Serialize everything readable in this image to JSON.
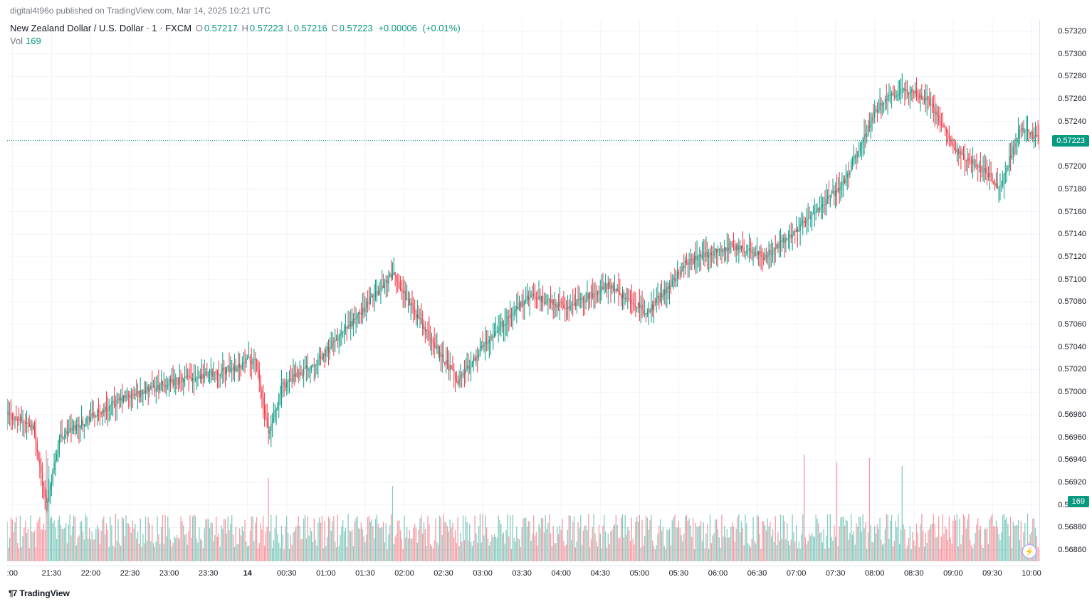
{
  "header": {
    "publisher": "digital4t96o",
    "text_mid": " published on ",
    "site": "TradingView.com",
    "text_sep": ", ",
    "timestamp": "Mar 14, 2025 10:21 UTC"
  },
  "legend": {
    "symbol": "New Zealand Dollar / U.S. Dollar",
    "interval": "1",
    "broker": "FXCM",
    "sep": " · ",
    "O_label": "O",
    "O": "0.57217",
    "H_label": "H",
    "H": "0.57223",
    "L_label": "L",
    "L": "0.57216",
    "C_label": "C",
    "C": "0.57223",
    "change_abs": "+0.00006",
    "change_pct": "(+0.01%)"
  },
  "volume_legend": {
    "label": "Vol",
    "value": "169"
  },
  "footer": {
    "brand": "TradingView"
  },
  "colors": {
    "up": "#089981",
    "down": "#f23645",
    "grid": "#f0f3fa",
    "axis": "#e0e3eb",
    "text": "#131722",
    "muted": "#787b86",
    "vol_up": "rgba(8,153,129,0.5)",
    "vol_down": "rgba(242,54,69,0.5)",
    "price_tag_bg": "#089981",
    "vol_tag_bg": "#089981"
  },
  "chart": {
    "type": "candlestick",
    "y_min": 0.5685,
    "y_max": 0.5733,
    "y_ticks": [
      "0.57320",
      "0.57300",
      "0.57280",
      "0.57260",
      "0.57240",
      "0.57220",
      "0.57200",
      "0.57180",
      "0.57160",
      "0.57140",
      "0.57120",
      "0.57100",
      "0.57080",
      "0.57060",
      "0.57040",
      "0.57020",
      "0.57000",
      "0.56980",
      "0.56960",
      "0.56940",
      "0.56920",
      "0.56900",
      "0.56880",
      "0.56860"
    ],
    "last_price": 0.57223,
    "last_price_label": "0.57223",
    "vol_tag": "169",
    "vol_max": 600,
    "x_count": 790,
    "x_ticks": [
      {
        "i": 4,
        "label": ":00"
      },
      {
        "i": 34,
        "label": "21:30"
      },
      {
        "i": 64,
        "label": "22:00"
      },
      {
        "i": 94,
        "label": "22:30"
      },
      {
        "i": 124,
        "label": "23:00"
      },
      {
        "i": 154,
        "label": "23:30"
      },
      {
        "i": 184,
        "label": "14",
        "bold": true
      },
      {
        "i": 214,
        "label": "00:30"
      },
      {
        "i": 244,
        "label": "01:00"
      },
      {
        "i": 274,
        "label": "01:30"
      },
      {
        "i": 304,
        "label": "02:00"
      },
      {
        "i": 334,
        "label": "02:30"
      },
      {
        "i": 364,
        "label": "03:00"
      },
      {
        "i": 394,
        "label": "03:30"
      },
      {
        "i": 424,
        "label": "04:00"
      },
      {
        "i": 454,
        "label": "04:30"
      },
      {
        "i": 484,
        "label": "05:00"
      },
      {
        "i": 514,
        "label": "05:30"
      },
      {
        "i": 544,
        "label": "06:00"
      },
      {
        "i": 574,
        "label": "06:30"
      },
      {
        "i": 604,
        "label": "07:00"
      },
      {
        "i": 634,
        "label": "07:30"
      },
      {
        "i": 664,
        "label": "08:00"
      },
      {
        "i": 694,
        "label": "08:30"
      },
      {
        "i": 724,
        "label": "09:00"
      },
      {
        "i": 754,
        "label": "09:30"
      },
      {
        "i": 784,
        "label": "10:00"
      }
    ],
    "trend_anchors": [
      {
        "i": 0,
        "p": 0.5698
      },
      {
        "i": 20,
        "p": 0.5697
      },
      {
        "i": 30,
        "p": 0.569
      },
      {
        "i": 40,
        "p": 0.5696
      },
      {
        "i": 60,
        "p": 0.56975
      },
      {
        "i": 90,
        "p": 0.56995
      },
      {
        "i": 130,
        "p": 0.5701
      },
      {
        "i": 170,
        "p": 0.5702
      },
      {
        "i": 190,
        "p": 0.5703
      },
      {
        "i": 200,
        "p": 0.5696
      },
      {
        "i": 210,
        "p": 0.57005
      },
      {
        "i": 240,
        "p": 0.5703
      },
      {
        "i": 270,
        "p": 0.5707
      },
      {
        "i": 295,
        "p": 0.57105
      },
      {
        "i": 320,
        "p": 0.57055
      },
      {
        "i": 345,
        "p": 0.5701
      },
      {
        "i": 370,
        "p": 0.5705
      },
      {
        "i": 400,
        "p": 0.57085
      },
      {
        "i": 430,
        "p": 0.57075
      },
      {
        "i": 460,
        "p": 0.57095
      },
      {
        "i": 490,
        "p": 0.5707
      },
      {
        "i": 520,
        "p": 0.57115
      },
      {
        "i": 555,
        "p": 0.5713
      },
      {
        "i": 580,
        "p": 0.5712
      },
      {
        "i": 610,
        "p": 0.5715
      },
      {
        "i": 640,
        "p": 0.57185
      },
      {
        "i": 665,
        "p": 0.5725
      },
      {
        "i": 685,
        "p": 0.5727
      },
      {
        "i": 705,
        "p": 0.5726
      },
      {
        "i": 725,
        "p": 0.57215
      },
      {
        "i": 745,
        "p": 0.572
      },
      {
        "i": 760,
        "p": 0.5718
      },
      {
        "i": 775,
        "p": 0.57235
      },
      {
        "i": 790,
        "p": 0.57223
      }
    ],
    "noise_body": 7e-05,
    "noise_wick": 0.00014,
    "vol_spikes": [
      {
        "i": 30,
        "v": 560
      },
      {
        "i": 31,
        "v": 520
      },
      {
        "i": 32,
        "v": 480
      },
      {
        "i": 200,
        "v": 420
      },
      {
        "i": 295,
        "v": 380
      },
      {
        "i": 610,
        "v": 540
      },
      {
        "i": 635,
        "v": 500
      },
      {
        "i": 660,
        "v": 520
      },
      {
        "i": 685,
        "v": 480
      }
    ],
    "vol_base_min": 60,
    "vol_base_max": 240
  }
}
